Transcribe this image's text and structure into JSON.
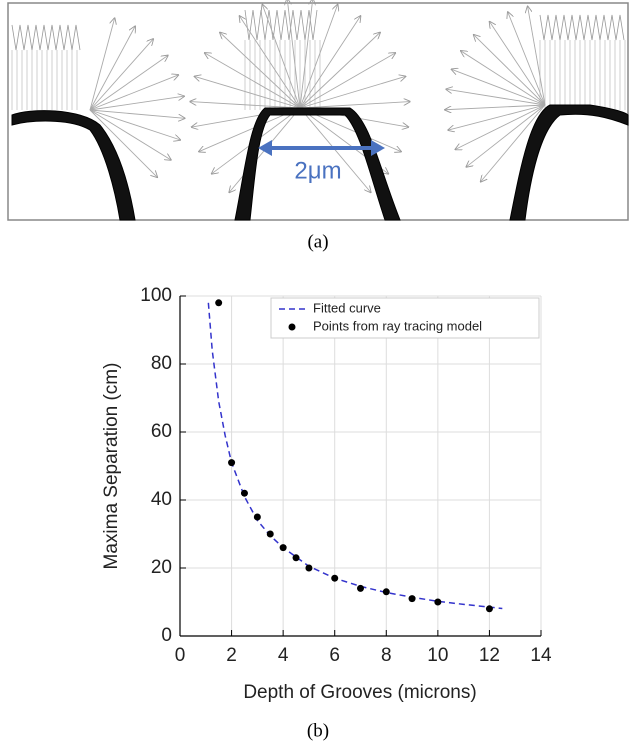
{
  "panel_a": {
    "scale_label": "2μm",
    "label": "(a)"
  },
  "chart_data": {
    "type": "scatter",
    "xlabel": "Depth of Grooves (microns)",
    "ylabel": "Maxima Separation (cm)",
    "xlim": [
      0,
      14
    ],
    "ylim": [
      0,
      100
    ],
    "xticks": [
      0,
      2,
      4,
      6,
      8,
      10,
      12,
      14
    ],
    "yticks": [
      0,
      20,
      40,
      60,
      80,
      100
    ],
    "grid": true,
    "legend": "upper right",
    "series": [
      {
        "name": "Fitted curve",
        "color": "#3333cc",
        "style": "dashed",
        "x": [
          1.1,
          1.25,
          1.5,
          1.75,
          2,
          2.5,
          3,
          3.5,
          4,
          5,
          6,
          7,
          8,
          9,
          10,
          11,
          12,
          12.5
        ],
        "values": [
          98,
          84,
          69,
          59,
          51,
          41,
          34,
          29.5,
          26,
          20.5,
          17,
          14.6,
          12.8,
          11.4,
          10.2,
          9.3,
          8.5,
          8.1
        ]
      },
      {
        "name": "Points from ray tracing model",
        "color": "#000000",
        "style": "points",
        "x": [
          1.5,
          2,
          2.5,
          3,
          3.5,
          4,
          4.5,
          5,
          6,
          7,
          8,
          9,
          10,
          12
        ],
        "values": [
          98,
          51,
          42,
          35,
          30,
          26,
          23,
          20,
          17,
          14,
          13,
          11,
          10,
          8
        ]
      }
    ]
  },
  "panel_b_label": "(b)"
}
